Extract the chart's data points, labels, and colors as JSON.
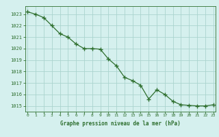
{
  "x": [
    0,
    1,
    2,
    3,
    4,
    5,
    6,
    7,
    8,
    9,
    10,
    11,
    12,
    13,
    14,
    15,
    16,
    17,
    18,
    19,
    20,
    21,
    22,
    23
  ],
  "y": [
    1023.2,
    1023.0,
    1022.7,
    1022.0,
    1021.3,
    1021.0,
    1020.4,
    1020.0,
    1020.0,
    1019.95,
    1019.1,
    1018.5,
    1017.5,
    1017.2,
    1016.8,
    1015.6,
    1016.4,
    1016.0,
    1015.4,
    1015.1,
    1015.05,
    1015.0,
    1015.0,
    1015.1
  ],
  "line_color": "#2d6e2d",
  "marker": "+",
  "marker_color": "#2d6e2d",
  "bg_color": "#d5f0ee",
  "grid_color": "#aad4ce",
  "xlabel": "Graphe pression niveau de la mer (hPa)",
  "xlabel_color": "#2d6e2d",
  "tick_color": "#2d6e2d",
  "ylim": [
    1014.5,
    1023.7
  ],
  "xlim": [
    -0.3,
    23.3
  ],
  "yticks": [
    1015,
    1016,
    1017,
    1018,
    1019,
    1020,
    1021,
    1022,
    1023
  ],
  "xticks": [
    0,
    1,
    2,
    3,
    4,
    5,
    6,
    7,
    8,
    9,
    10,
    11,
    12,
    13,
    14,
    15,
    16,
    17,
    18,
    19,
    20,
    21,
    22,
    23
  ],
  "figsize": [
    3.2,
    2.0
  ],
  "dpi": 100
}
